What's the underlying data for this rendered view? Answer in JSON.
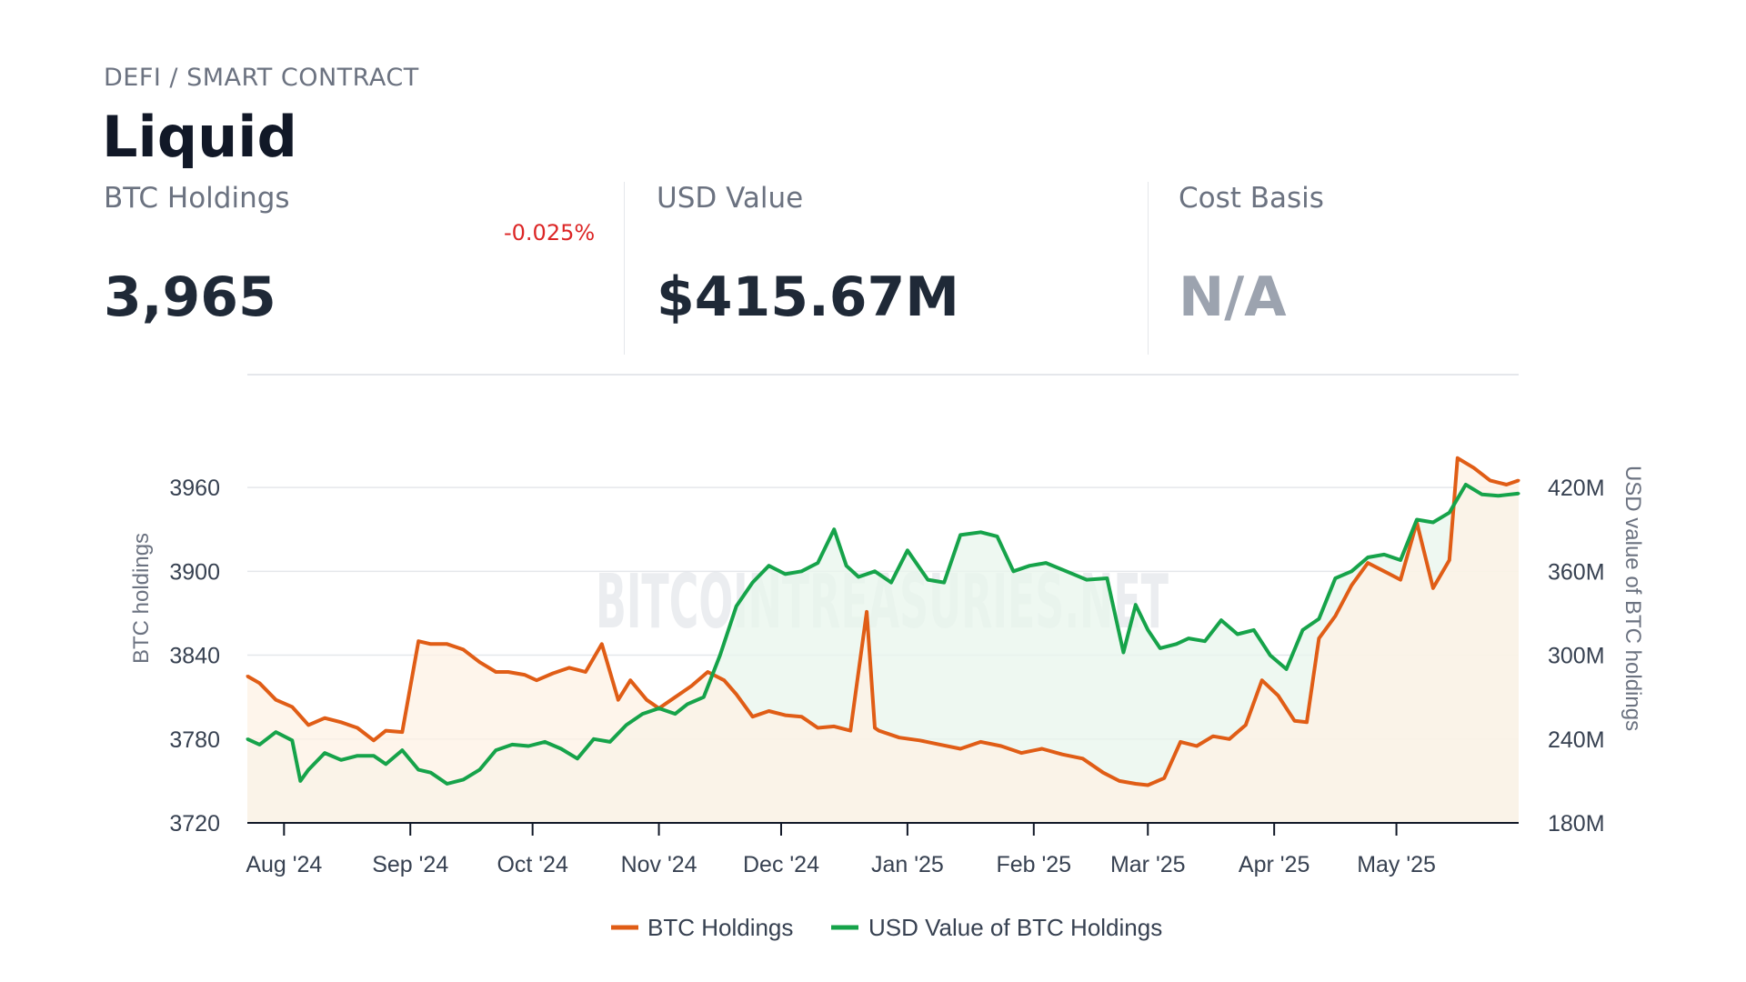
{
  "header": {
    "category": "DEFI / SMART CONTRACT",
    "entity_name": "Liquid"
  },
  "stats": {
    "btc_holdings": {
      "label": "BTC Holdings",
      "value": "3,965",
      "change": "-0.025%"
    },
    "usd_value": {
      "label": "USD Value",
      "value": "$415.67M"
    },
    "cost_basis": {
      "label": "Cost Basis",
      "value": "N/A"
    }
  },
  "colors": {
    "btc_line": "#e05d16",
    "usd_line": "#16a34a",
    "btc_fill": "#fdf2e4",
    "usd_fill": "#e8f6ec",
    "negative_change": "#dc2626"
  },
  "watermark": "BITCOINTREASURIES.NET",
  "chart_data": {
    "type": "line",
    "x_label": "",
    "y_left_label": "BTC holdings",
    "y_right_label": "USD value of BTC holdings",
    "y_left_range": [
      3720,
      3990
    ],
    "y_right_range": [
      180,
      450
    ],
    "y_left_ticks": [
      3720,
      3780,
      3840,
      3900,
      3960
    ],
    "y_right_ticks": [
      "180M",
      "240M",
      "300M",
      "360M",
      "420M"
    ],
    "y_right_tick_values": [
      180,
      240,
      300,
      360,
      420
    ],
    "x_ticks": [
      "Aug '24",
      "Sep '24",
      "Oct '24",
      "Nov '24",
      "Dec '24",
      "Jan '25",
      "Feb '25",
      "Mar '25",
      "Apr '25",
      "May '25"
    ],
    "x_tick_dates": [
      "2024-08-01",
      "2024-09-01",
      "2024-10-01",
      "2024-11-01",
      "2024-12-01",
      "2025-01-01",
      "2025-02-01",
      "2025-03-01",
      "2025-04-01",
      "2025-05-01"
    ],
    "x_range": [
      "2024-07-23",
      "2025-05-31"
    ],
    "grid": true,
    "legend_position": "bottom",
    "series": [
      {
        "name": "BTC Holdings",
        "axis": "left",
        "x": [
          "2024-07-23",
          "2024-07-26",
          "2024-07-30",
          "2024-08-03",
          "2024-08-07",
          "2024-08-11",
          "2024-08-15",
          "2024-08-19",
          "2024-08-23",
          "2024-08-26",
          "2024-08-30",
          "2024-09-03",
          "2024-09-06",
          "2024-09-10",
          "2024-09-14",
          "2024-09-18",
          "2024-09-22",
          "2024-09-25",
          "2024-09-29",
          "2024-10-02",
          "2024-10-06",
          "2024-10-10",
          "2024-10-14",
          "2024-10-18",
          "2024-10-22",
          "2024-10-25",
          "2024-10-29",
          "2024-11-01",
          "2024-11-05",
          "2024-11-09",
          "2024-11-13",
          "2024-11-17",
          "2024-11-20",
          "2024-11-24",
          "2024-11-28",
          "2024-12-02",
          "2024-12-06",
          "2024-12-10",
          "2024-12-14",
          "2024-12-18",
          "2024-12-22",
          "2024-12-24",
          "2024-12-25",
          "2024-12-26",
          "2024-12-30",
          "2025-01-04",
          "2025-01-09",
          "2025-01-14",
          "2025-01-19",
          "2025-01-24",
          "2025-01-29",
          "2025-02-03",
          "2025-02-08",
          "2025-02-13",
          "2025-02-18",
          "2025-02-22",
          "2025-02-26",
          "2025-03-01",
          "2025-03-05",
          "2025-03-09",
          "2025-03-13",
          "2025-03-17",
          "2025-03-21",
          "2025-03-25",
          "2025-03-29",
          "2025-04-02",
          "2025-04-06",
          "2025-04-09",
          "2025-04-12",
          "2025-04-16",
          "2025-04-20",
          "2025-04-24",
          "2025-04-28",
          "2025-05-02",
          "2025-05-06",
          "2025-05-10",
          "2025-05-14",
          "2025-05-16",
          "2025-05-20",
          "2025-05-24",
          "2025-05-28",
          "2025-05-31"
        ],
        "values": [
          3825,
          3820,
          3808,
          3803,
          3790,
          3795,
          3792,
          3788,
          3779,
          3786,
          3785,
          3850,
          3848,
          3848,
          3844,
          3835,
          3828,
          3828,
          3826,
          3822,
          3827,
          3831,
          3828,
          3848,
          3808,
          3822,
          3808,
          3802,
          3810,
          3818,
          3828,
          3822,
          3812,
          3796,
          3800,
          3797,
          3796,
          3788,
          3789,
          3786,
          3871,
          3788,
          3786,
          3785,
          3781,
          3779,
          3776,
          3773,
          3778,
          3775,
          3770,
          3773,
          3769,
          3766,
          3756,
          3750,
          3748,
          3747,
          3752,
          3778,
          3775,
          3782,
          3780,
          3790,
          3822,
          3811,
          3793,
          3792,
          3852,
          3868,
          3890,
          3906,
          3900,
          3894,
          3935,
          3888,
          3908,
          3981,
          3974,
          3965,
          3962,
          3965
        ]
      },
      {
        "name": "USD Value of BTC Holdings",
        "axis": "right",
        "x": [
          "2024-07-23",
          "2024-07-26",
          "2024-07-30",
          "2024-08-03",
          "2024-08-05",
          "2024-08-07",
          "2024-08-11",
          "2024-08-15",
          "2024-08-19",
          "2024-08-23",
          "2024-08-26",
          "2024-08-30",
          "2024-09-03",
          "2024-09-06",
          "2024-09-10",
          "2024-09-14",
          "2024-09-18",
          "2024-09-22",
          "2024-09-26",
          "2024-09-30",
          "2024-10-04",
          "2024-10-08",
          "2024-10-12",
          "2024-10-16",
          "2024-10-20",
          "2024-10-24",
          "2024-10-28",
          "2024-11-01",
          "2024-11-05",
          "2024-11-08",
          "2024-11-12",
          "2024-11-16",
          "2024-11-20",
          "2024-11-24",
          "2024-11-28",
          "2024-12-02",
          "2024-12-06",
          "2024-12-10",
          "2024-12-14",
          "2024-12-17",
          "2024-12-20",
          "2024-12-24",
          "2024-12-28",
          "2025-01-01",
          "2025-01-06",
          "2025-01-10",
          "2025-01-14",
          "2025-01-19",
          "2025-01-23",
          "2025-01-27",
          "2025-01-31",
          "2025-02-04",
          "2025-02-09",
          "2025-02-14",
          "2025-02-19",
          "2025-02-23",
          "2025-02-26",
          "2025-03-01",
          "2025-03-04",
          "2025-03-08",
          "2025-03-11",
          "2025-03-15",
          "2025-03-19",
          "2025-03-23",
          "2025-03-27",
          "2025-03-31",
          "2025-04-04",
          "2025-04-08",
          "2025-04-12",
          "2025-04-16",
          "2025-04-20",
          "2025-04-24",
          "2025-04-28",
          "2025-05-02",
          "2025-05-06",
          "2025-05-10",
          "2025-05-14",
          "2025-05-18",
          "2025-05-22",
          "2025-05-26",
          "2025-05-31"
        ],
        "values": [
          240,
          236,
          245,
          239,
          210,
          218,
          230,
          225,
          228,
          228,
          222,
          232,
          218,
          216,
          208,
          211,
          218,
          232,
          236,
          235,
          238,
          233,
          226,
          240,
          238,
          250,
          258,
          262,
          258,
          265,
          270,
          300,
          335,
          352,
          364,
          358,
          360,
          366,
          390,
          364,
          356,
          360,
          352,
          375,
          354,
          352,
          386,
          388,
          385,
          360,
          364,
          366,
          360,
          354,
          355,
          302,
          336,
          318,
          305,
          308,
          312,
          310,
          325,
          315,
          318,
          300,
          290,
          318,
          326,
          355,
          360,
          370,
          372,
          368,
          397,
          395,
          402,
          422,
          415,
          414,
          415.67
        ]
      }
    ]
  },
  "legend": {
    "items": [
      "BTC Holdings",
      "USD Value of BTC Holdings"
    ]
  }
}
